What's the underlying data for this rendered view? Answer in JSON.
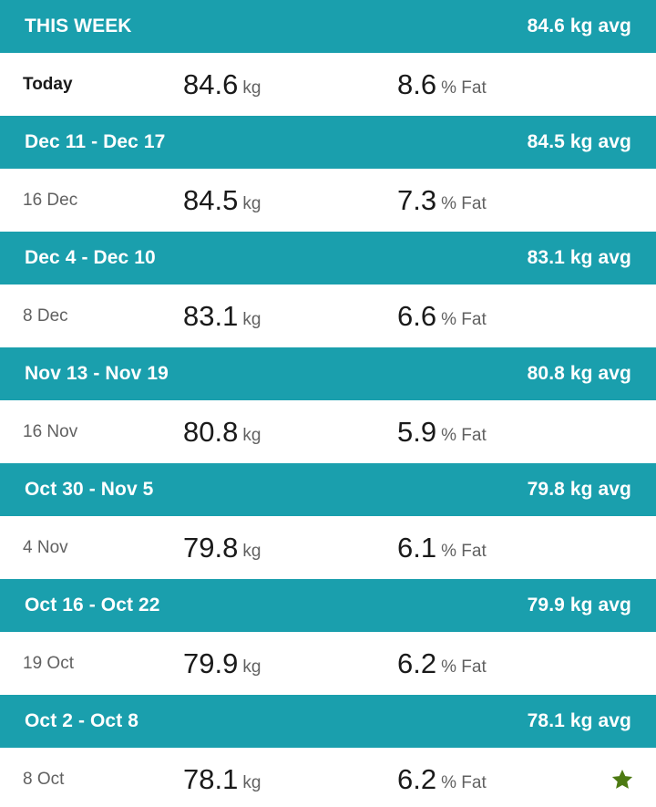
{
  "weeks": [
    {
      "range": "THIS WEEK",
      "avg": "84.6 kg avg",
      "entry": {
        "date": "Today",
        "weight": "84.6",
        "weight_unit": "kg",
        "fat": "8.6",
        "fat_unit": "% Fat"
      }
    },
    {
      "range": "Dec 11 - Dec 17",
      "avg": "84.5 kg avg",
      "entry": {
        "date": "16 Dec",
        "weight": "84.5",
        "weight_unit": "kg",
        "fat": "7.3",
        "fat_unit": "% Fat"
      }
    },
    {
      "range": "Dec 4 - Dec 10",
      "avg": "83.1 kg avg",
      "entry": {
        "date": "8 Dec",
        "weight": "83.1",
        "weight_unit": "kg",
        "fat": "6.6",
        "fat_unit": "% Fat"
      }
    },
    {
      "range": "Nov 13 - Nov 19",
      "avg": "80.8 kg avg",
      "entry": {
        "date": "16 Nov",
        "weight": "80.8",
        "weight_unit": "kg",
        "fat": "5.9",
        "fat_unit": "% Fat"
      }
    },
    {
      "range": "Oct 30 - Nov 5",
      "avg": "79.8 kg avg",
      "entry": {
        "date": "4 Nov",
        "weight": "79.8",
        "weight_unit": "kg",
        "fat": "6.1",
        "fat_unit": "% Fat"
      }
    },
    {
      "range": "Oct 16 - Oct 22",
      "avg": "79.9 kg avg",
      "entry": {
        "date": "19 Oct",
        "weight": "79.9",
        "weight_unit": "kg",
        "fat": "6.2",
        "fat_unit": "% Fat"
      }
    },
    {
      "range": "Oct 2 - Oct 8",
      "avg": "78.1 kg avg",
      "entry": {
        "date": "8 Oct",
        "weight": "78.1",
        "weight_unit": "kg",
        "fat": "6.2",
        "fat_unit": "% Fat",
        "badge": "star-icon"
      }
    }
  ],
  "colors": {
    "header_bg": "#1a9fad",
    "header_text": "#ffffff",
    "star": "#4d7a12"
  }
}
